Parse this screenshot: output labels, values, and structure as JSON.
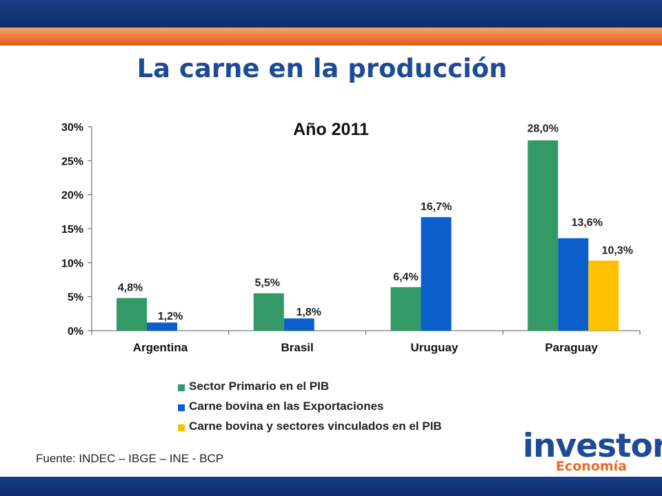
{
  "page": {
    "title": "La carne en la producción",
    "source": "Fuente: INDEC – IBGE – INE - BCP"
  },
  "logo": {
    "main": "investor",
    "sub": "Economía S.A."
  },
  "colors": {
    "band": "#14367a",
    "stripe": "#ec7a36",
    "title": "#1e4b96",
    "series": [
      "#339966",
      "#0b5fcc",
      "#ffc000"
    ]
  },
  "chart_data": {
    "type": "bar",
    "title": "Año 2011",
    "categories": [
      "Argentina",
      "Brasil",
      "Uruguay",
      "Paraguay"
    ],
    "series": [
      {
        "name": "Sector Primario en el PIB",
        "values": [
          4.8,
          5.5,
          6.4,
          28.0
        ],
        "labels": [
          "4,8%",
          "5,5%",
          "6,4%",
          "28,0%"
        ]
      },
      {
        "name": "Carne bovina en las Exportaciones",
        "values": [
          1.2,
          1.8,
          16.7,
          13.6
        ],
        "labels": [
          "1,2%",
          "1,8%",
          "16,7%",
          "13,6%"
        ]
      },
      {
        "name": "Carne bovina y sectores vinculados en el PIB",
        "values": [
          null,
          null,
          null,
          10.3
        ],
        "labels": [
          null,
          null,
          null,
          "10,3%"
        ]
      }
    ],
    "yticks": [
      "0%",
      "5%",
      "10%",
      "15%",
      "20%",
      "25%",
      "30%"
    ],
    "ylim": [
      0,
      30
    ],
    "xlabel": "",
    "ylabel": "",
    "grid": false,
    "legend": "bottom"
  }
}
